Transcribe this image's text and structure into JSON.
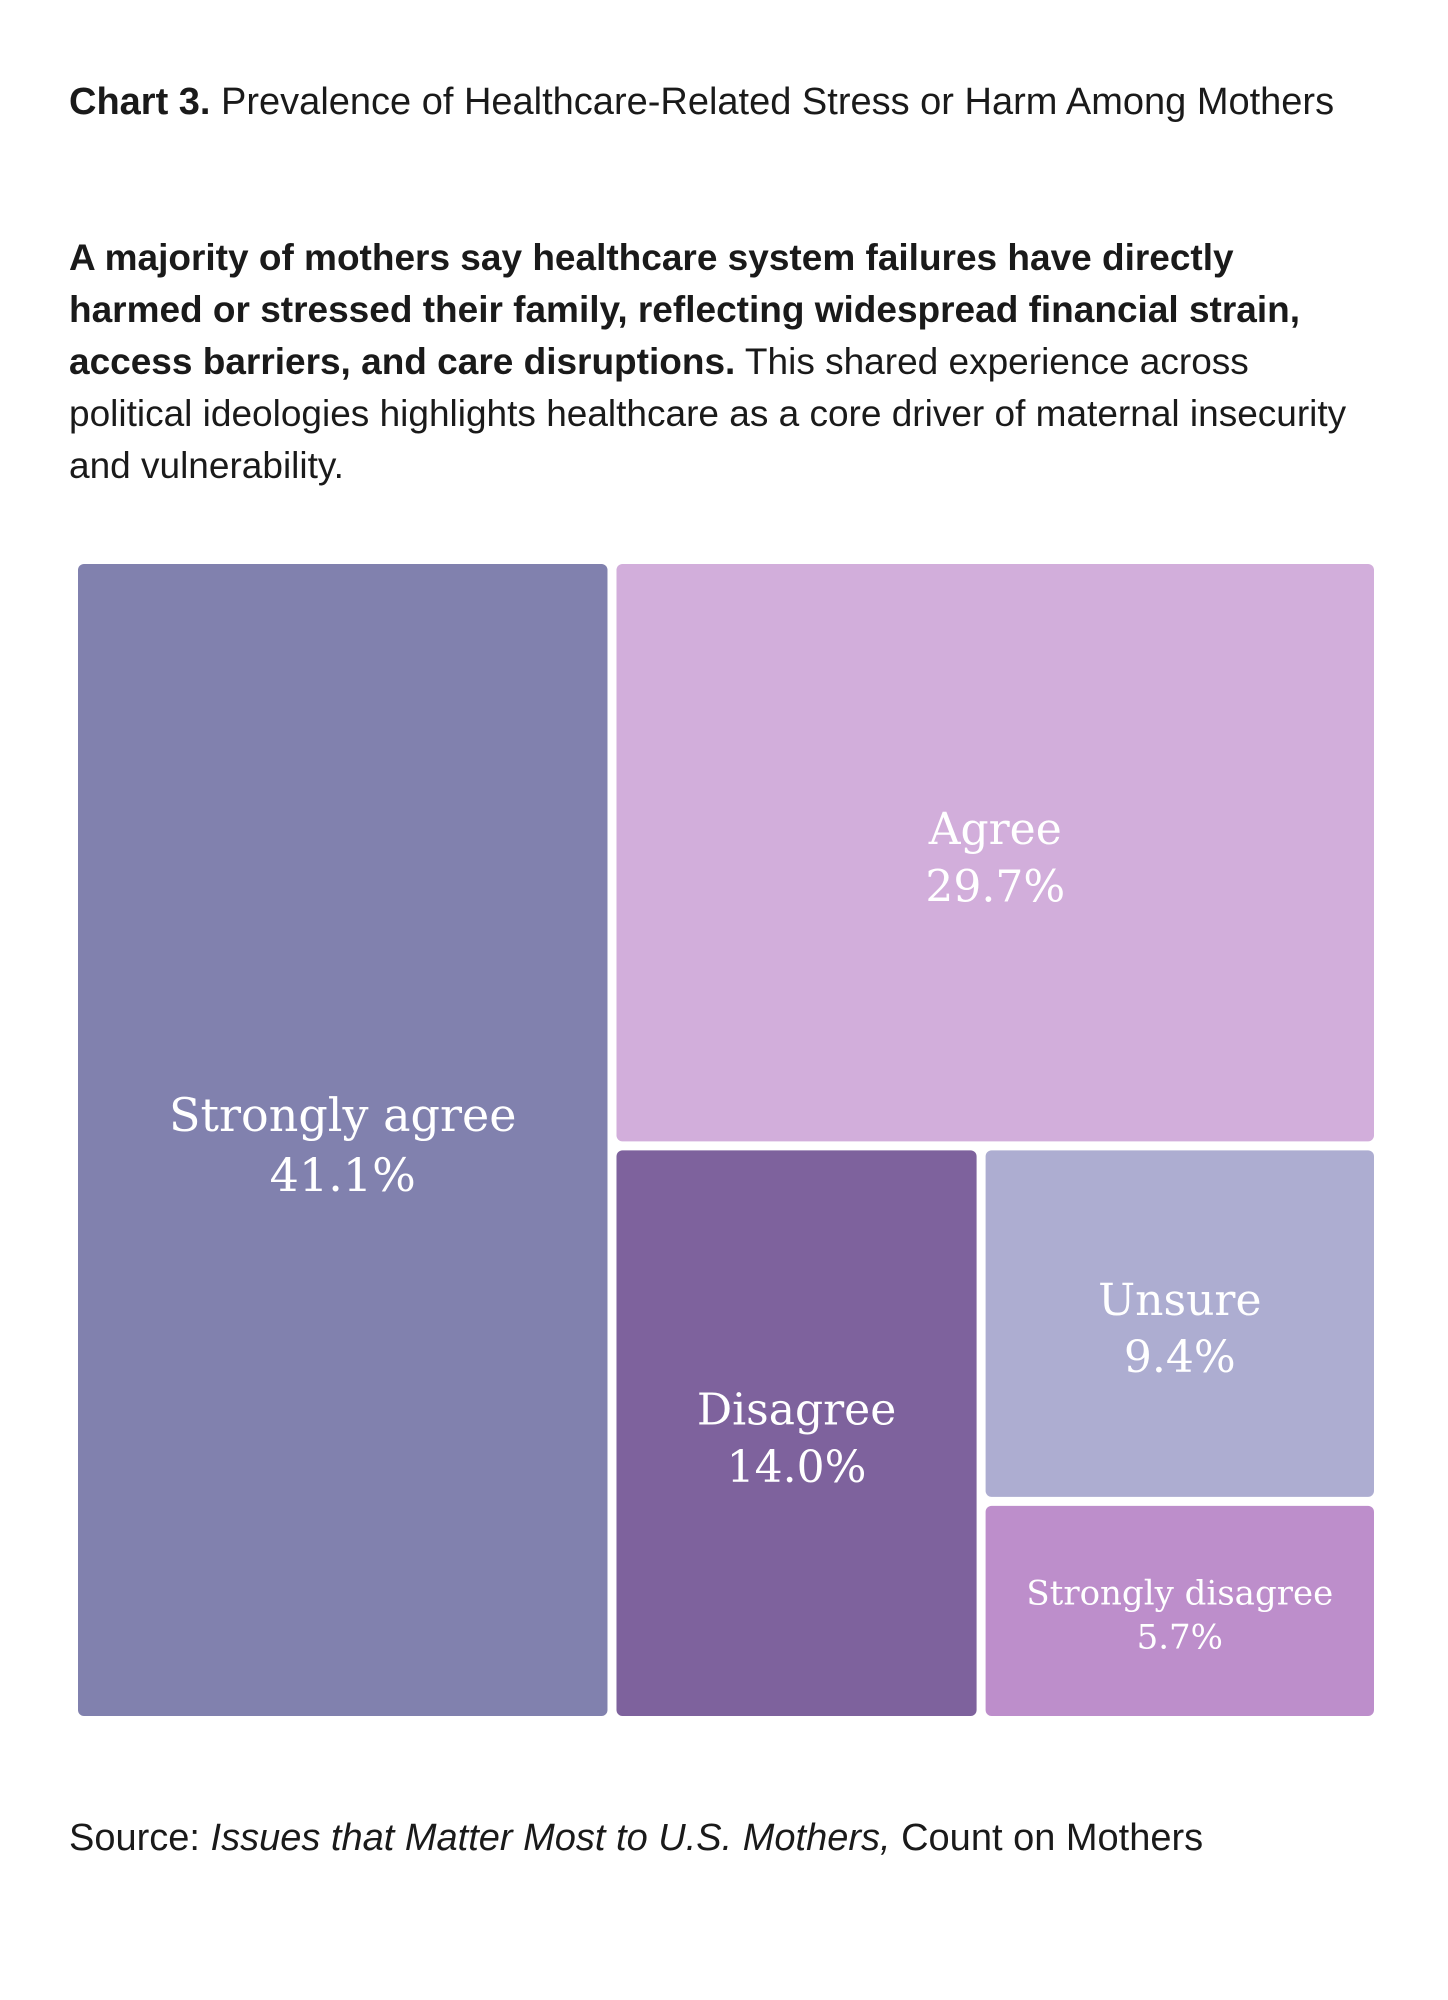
{
  "header": {
    "chart_number": "Chart 3.",
    "title": "Prevalence of Healthcare-Related Stress or Harm Among Mothers"
  },
  "intro": {
    "bold": "A majority of mothers say healthcare system failures have directly harmed or stressed their family, reflecting widespread financial strain, access barriers, and care disruptions.",
    "rest": " This shared experience across political ideologies highlights healthcare as a core driver of maternal insecurity and vulnerability."
  },
  "source": {
    "prefix": "Source: ",
    "publication": "Issues that Matter Most to U.S. Mothers,",
    "suffix": " Count on Mothers"
  },
  "chart_data": {
    "type": "treemap",
    "title": "Prevalence of Healthcare-Related Stress or Harm Among Mothers",
    "categories": [
      "Strongly agree",
      "Agree",
      "Disagree",
      "Unsure",
      "Strongly disagree"
    ],
    "values": [
      41.1,
      29.7,
      14.0,
      9.4,
      5.7
    ],
    "value_labels": [
      "41.1%",
      "29.7%",
      "14.0%",
      "9.4%",
      "5.7%"
    ],
    "colors": [
      "#8181ae",
      "#d2aedb",
      "#7e629d",
      "#adadd1",
      "#bd8ecb"
    ],
    "unit": "%"
  }
}
